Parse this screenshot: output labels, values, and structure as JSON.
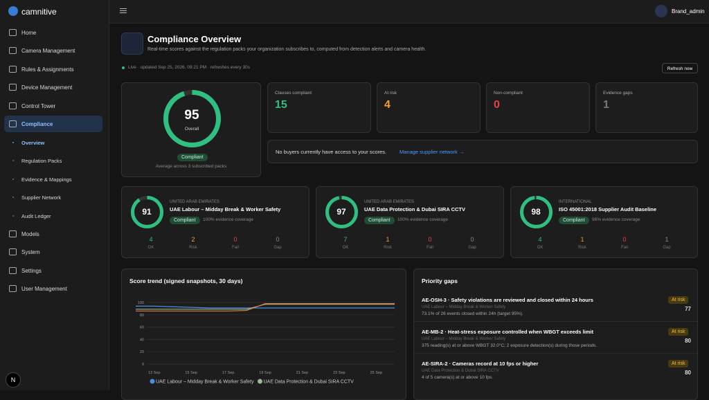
{
  "brand": "camnitive",
  "nav": [
    "Home",
    "Camera Management",
    "Rules & Assignments",
    "Device Management",
    "Control Tower",
    "Compliance"
  ],
  "subnav": [
    "Overview",
    "Regulation Packs",
    "Evidence & Mappings",
    "Supplier Network",
    "Audit Ledger"
  ],
  "nav_bottom": [
    "Models",
    "System",
    "Settings",
    "User Management"
  ],
  "avatar": "N",
  "user": "Brand_admin",
  "header": {
    "title": "Compliance Overview",
    "subtitle": "Real-time scores against the regulation packs your organization subscribes to, computed from detection alerts and camera health.",
    "live": "Live · updated Sep 25, 2026, 09:21 PM · refreshes every 30s",
    "refresh": "Refresh now"
  },
  "overall": {
    "score": 95,
    "label": "Overall",
    "status": "Compliant",
    "note": "Average across 3 subscribed packs"
  },
  "stats": [
    {
      "label": "Clauses compliant",
      "value": 15,
      "color": "#2fbf80"
    },
    {
      "label": "At risk",
      "value": 4,
      "color": "#f0a030"
    },
    {
      "label": "Non-compliant",
      "value": 0,
      "color": "#e84040"
    },
    {
      "label": "Evidence gaps",
      "value": 1,
      "color": "#777777"
    }
  ],
  "banner": {
    "text": "No buyers currently have access to your scores.",
    "link": "Manage supplier network →"
  },
  "count_labels": [
    "OK",
    "Risk",
    "Fail",
    "Gap"
  ],
  "packs": [
    {
      "region": "UNITED ARAB EMIRATES",
      "name": "UAE Labour – Midday Break & Worker Safety",
      "score": 91,
      "status": "Compliant",
      "coverage": "100% evidence coverage",
      "counts": [
        4,
        2,
        0,
        0
      ]
    },
    {
      "region": "UNITED ARAB EMIRATES",
      "name": "UAE Data Protection & Dubai SIRA CCTV",
      "score": 97,
      "status": "Compliant",
      "coverage": "100% evidence coverage",
      "counts": [
        7,
        1,
        0,
        0
      ]
    },
    {
      "region": "INTERNATIONAL",
      "name": "ISO 45001:2018 Supplier Audit Baseline",
      "score": 98,
      "status": "Compliant",
      "coverage": "96% evidence coverage",
      "counts": [
        4,
        1,
        0,
        1
      ]
    }
  ],
  "chart_data": {
    "type": "line",
    "title": "Score trend (signed snapshots, 30 days)",
    "categories": [
      null,
      "13 Sep",
      null,
      "15 Sep",
      null,
      "17 Sep",
      null,
      "19 Sep",
      null,
      "21 Sep",
      null,
      "23 Sep",
      null,
      "25 Sep",
      null
    ],
    "series": [
      {
        "name": "UAE Labour – Midday Break & Worker Safety",
        "color": "#4a8fe0",
        "values": [
          94,
          94,
          93,
          92,
          91,
          91,
          91,
          91,
          91,
          91,
          91,
          91,
          91,
          91,
          91
        ]
      },
      {
        "name": "UAE Data Protection & Dubai SIRA CCTV",
        "color": "#9ab89a",
        "values": [
          89,
          89,
          89,
          89,
          89,
          89,
          89,
          97,
          97,
          97,
          97,
          97,
          97,
          97,
          97
        ]
      },
      {
        "color": "#e0804a",
        "values": [
          86,
          86,
          86,
          86,
          86,
          86,
          87,
          98,
          98,
          98,
          98,
          98,
          98,
          98,
          98
        ]
      }
    ],
    "ylim": [
      0,
      100
    ],
    "yticks": [
      0,
      20,
      40,
      60,
      80,
      100
    ],
    "grid": true
  },
  "gaps": {
    "title": "Priority gaps",
    "items": [
      {
        "title": "AE-OSH-3 · Safety violations are reviewed and closed within 24 hours",
        "pack": "UAE Labour – Midday Break & Worker Safety",
        "detail": "73.1% of 26 events closed within 24h (target 95%).",
        "badge": "At risk",
        "score": 77
      },
      {
        "title": "AE-MB-2 · Heat-stress exposure controlled when WBGT exceeds limit",
        "pack": "UAE Labour – Midday Break & Worker Safety",
        "detail": "375 reading(s) at or above WBGT 32.0°C; 2 exposure detection(s) during those periods.",
        "badge": "At risk",
        "score": 80
      },
      {
        "title": "AE-SIRA-2 · Cameras record at 10 fps or higher",
        "pack": "UAE Data Protection & Dubai SIRA CCTV",
        "detail": "4 of 5 camera(s) at or above 10 fps.",
        "badge": "At risk",
        "score": 80
      }
    ]
  }
}
